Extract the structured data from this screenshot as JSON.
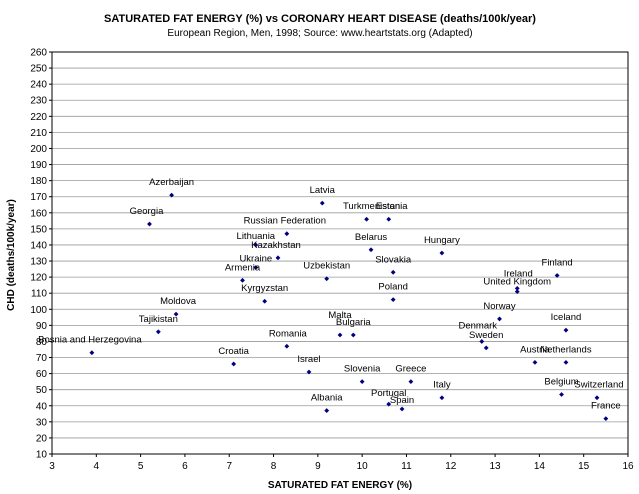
{
  "chart_data": {
    "type": "scatter",
    "title": "SATURATED FAT ENERGY (%) vs CORONARY HEART DISEASE (deaths/100k/year)",
    "subtitle": "European Region, Men, 1998; Source: www.heartstats.org (Adapted)",
    "xlabel": "SATURATED FAT ENERGY (%)",
    "ylabel": "CHD (deaths/100k/year)",
    "xlim": [
      3,
      16
    ],
    "ylim": [
      10,
      260
    ],
    "xticks": [
      "3",
      "4",
      "5",
      "6",
      "7",
      "8",
      "9",
      "10",
      "11",
      "12",
      "13",
      "14",
      "15",
      "16"
    ],
    "yticks": [
      "10",
      "20",
      "30",
      "40",
      "50",
      "60",
      "70",
      "80",
      "90",
      "100",
      "110",
      "120",
      "130",
      "140",
      "150",
      "160",
      "170",
      "180",
      "190",
      "200",
      "210",
      "220",
      "230",
      "240",
      "250",
      "260"
    ],
    "grid": true,
    "marker_color": "#000080",
    "series": [
      {
        "points": [
          {
            "label": "Bosnia and Herzegovina",
            "x": 3.9,
            "y": 73
          },
          {
            "label": "Georgia",
            "x": 5.2,
            "y": 153
          },
          {
            "label": "Tajikistan",
            "x": 5.4,
            "y": 86
          },
          {
            "label": "Azerbaijan",
            "x": 5.7,
            "y": 171
          },
          {
            "label": "Moldova",
            "x": 5.8,
            "y": 97
          },
          {
            "label": "Croatia",
            "x": 7.1,
            "y": 66
          },
          {
            "label": "Armenia",
            "x": 7.3,
            "y": 118
          },
          {
            "label": "Ukraine",
            "x": 7.6,
            "y": 126
          },
          {
            "label": "Kyrgyzstan",
            "x": 7.8,
            "y": 105
          },
          {
            "label": "Kazakhstan",
            "x": 8.1,
            "y": 132
          },
          {
            "label": "Lithuania",
            "x": 7.6,
            "y": 140
          },
          {
            "label": "Russian Federation",
            "x": 8.3,
            "y": 147
          },
          {
            "label": "Romania",
            "x": 8.3,
            "y": 77
          },
          {
            "label": "Israel",
            "x": 8.8,
            "y": 61
          },
          {
            "label": "Latvia",
            "x": 9.1,
            "y": 166
          },
          {
            "label": "Uzbekistan",
            "x": 9.2,
            "y": 119
          },
          {
            "label": "Albania",
            "x": 9.2,
            "y": 37
          },
          {
            "label": "Malta",
            "x": 9.5,
            "y": 84
          },
          {
            "label": "Bulgaria",
            "x": 9.8,
            "y": 84
          },
          {
            "label": "Slovenia",
            "x": 10.0,
            "y": 55
          },
          {
            "label": "Turkmenistan",
            "x": 10.1,
            "y": 156
          },
          {
            "label": "Belarus",
            "x": 10.2,
            "y": 137
          },
          {
            "label": "Estonia",
            "x": 10.6,
            "y": 156
          },
          {
            "label": "Slovakia",
            "x": 10.7,
            "y": 123
          },
          {
            "label": "Poland",
            "x": 10.7,
            "y": 106
          },
          {
            "label": "Portugal",
            "x": 10.6,
            "y": 41
          },
          {
            "label": "Spain",
            "x": 10.9,
            "y": 38
          },
          {
            "label": "Greece",
            "x": 11.1,
            "y": 55
          },
          {
            "label": "Italy",
            "x": 11.8,
            "y": 45
          },
          {
            "label": "Hungary",
            "x": 11.8,
            "y": 135
          },
          {
            "label": "Denmark",
            "x": 12.7,
            "y": 80
          },
          {
            "label": "Sweden",
            "x": 12.8,
            "y": 76
          },
          {
            "label": "Norway",
            "x": 13.1,
            "y": 94
          },
          {
            "label": "Ireland",
            "x": 13.5,
            "y": 113
          },
          {
            "label": "United Kingdom",
            "x": 13.5,
            "y": 111
          },
          {
            "label": "Austria",
            "x": 13.9,
            "y": 67
          },
          {
            "label": "Finland",
            "x": 14.4,
            "y": 121
          },
          {
            "label": "Belgium",
            "x": 14.5,
            "y": 47
          },
          {
            "label": "Iceland",
            "x": 14.6,
            "y": 87
          },
          {
            "label": "Netherlands",
            "x": 14.6,
            "y": 67
          },
          {
            "label": "Switzerland",
            "x": 15.3,
            "y": 45
          },
          {
            "label": "France",
            "x": 15.5,
            "y": 32
          }
        ]
      }
    ]
  }
}
